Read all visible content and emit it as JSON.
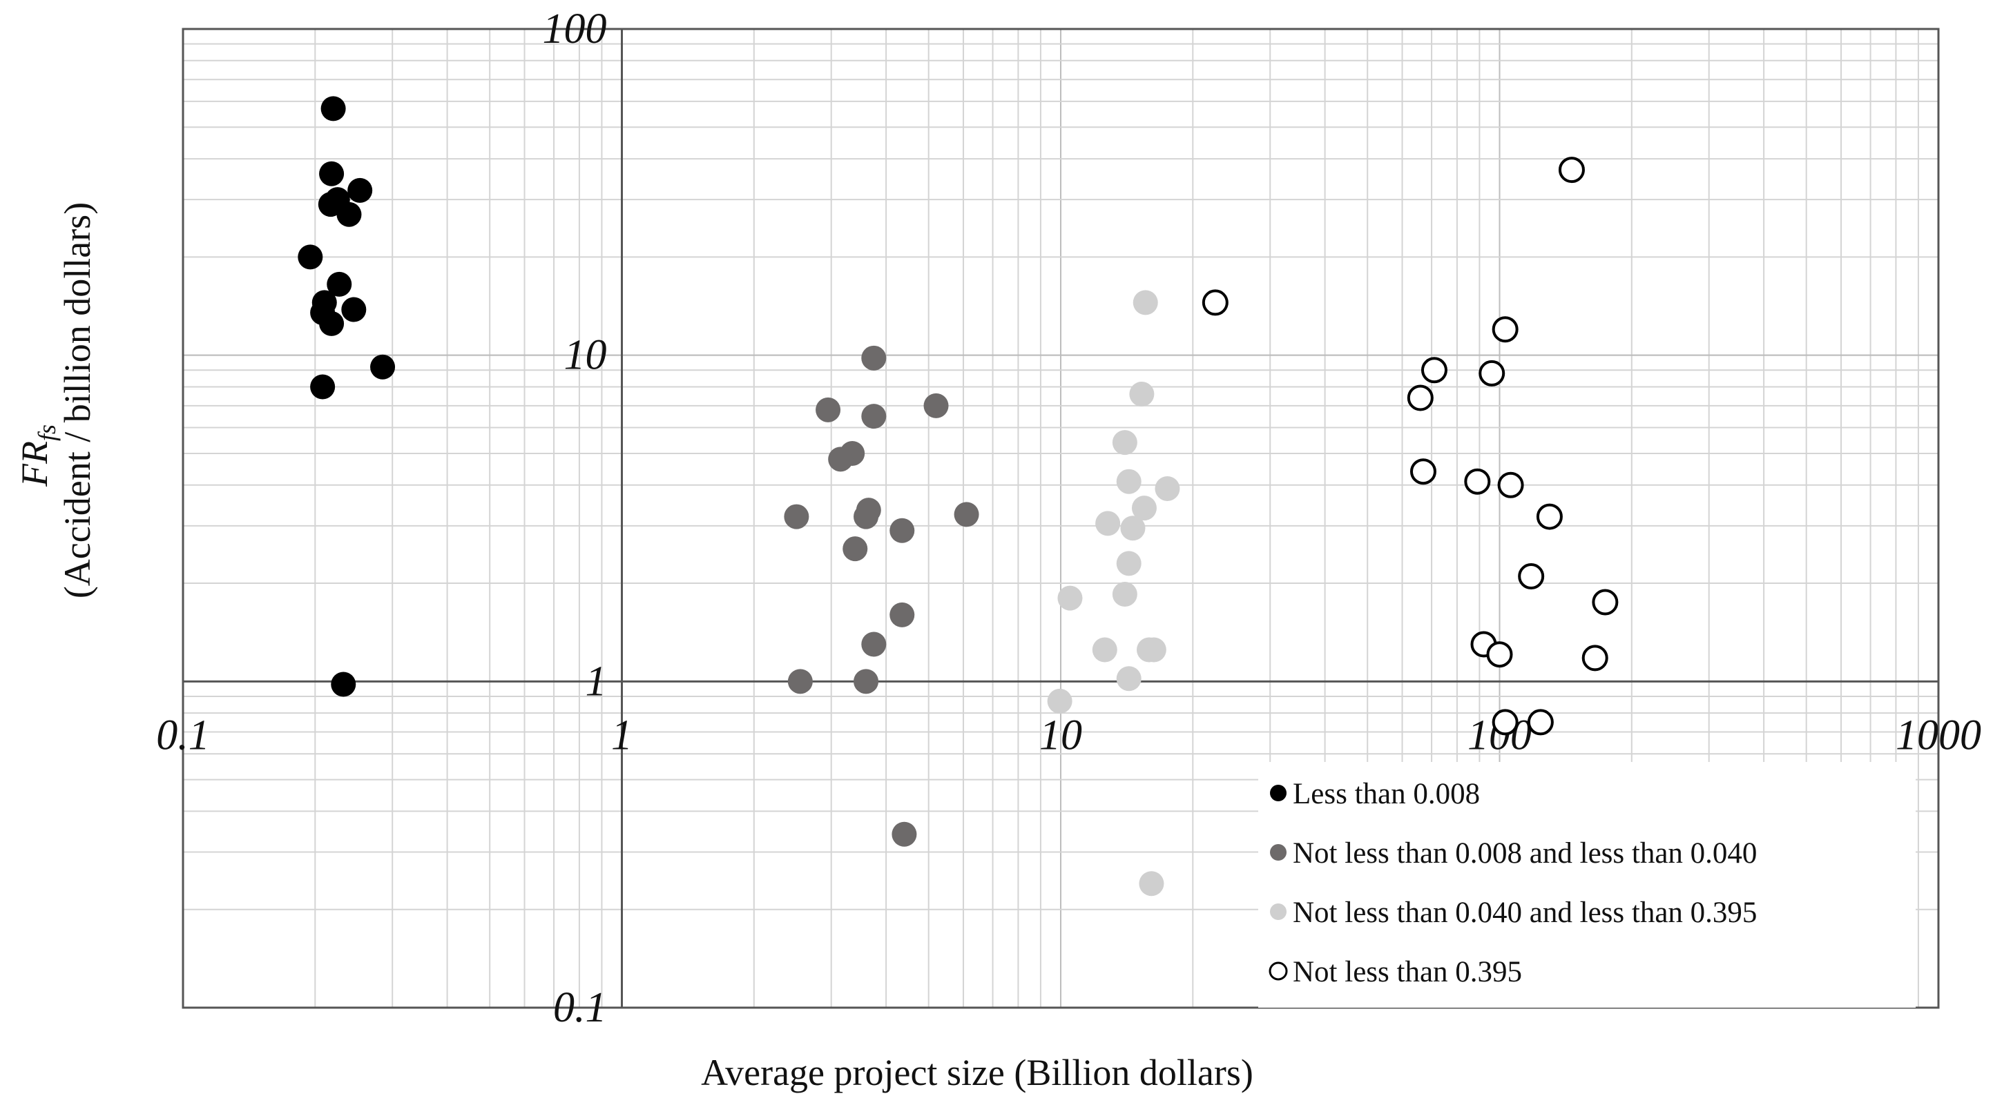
{
  "chart_data": {
    "type": "scatter",
    "x_scale": "log",
    "y_scale": "log",
    "xlim": [
      0.1,
      1000
    ],
    "ylim": [
      0.1,
      100
    ],
    "grid": true,
    "xlabel": "Average project size (Billion dollars)",
    "ylabel_main": "FR",
    "ylabel_sub": "fs",
    "ylabel_line2": "(Accident / billion dollars)",
    "x_tick_labels": [
      "0.1",
      "1",
      "10",
      "100",
      "1000"
    ],
    "x_tick_values": [
      0.1,
      1,
      10,
      100,
      1000
    ],
    "y_tick_labels": [
      "0.1",
      "1",
      "10",
      "100"
    ],
    "y_tick_values": [
      0.1,
      1,
      10,
      100
    ],
    "legend_position": "bottom-right",
    "series": [
      {
        "name": "Less than 0.008",
        "marker": "filled",
        "color": "#000000",
        "points": [
          {
            "x": 0.22,
            "y": 57
          },
          {
            "x": 0.218,
            "y": 36
          },
          {
            "x": 0.253,
            "y": 32
          },
          {
            "x": 0.217,
            "y": 29
          },
          {
            "x": 0.225,
            "y": 30
          },
          {
            "x": 0.239,
            "y": 27
          },
          {
            "x": 0.195,
            "y": 20
          },
          {
            "x": 0.227,
            "y": 16.5
          },
          {
            "x": 0.21,
            "y": 14.5
          },
          {
            "x": 0.208,
            "y": 13.5
          },
          {
            "x": 0.245,
            "y": 13.8
          },
          {
            "x": 0.218,
            "y": 12.5
          },
          {
            "x": 0.285,
            "y": 9.2
          },
          {
            "x": 0.208,
            "y": 8.0
          },
          {
            "x": 0.232,
            "y": 0.98
          }
        ]
      },
      {
        "name": "Not less than 0.008 and less than 0.040",
        "marker": "filled",
        "color": "#6d6a6a",
        "points": [
          {
            "x": 3.75,
            "y": 9.8
          },
          {
            "x": 2.95,
            "y": 6.8
          },
          {
            "x": 3.75,
            "y": 6.5
          },
          {
            "x": 5.2,
            "y": 7.0
          },
          {
            "x": 3.35,
            "y": 5.0
          },
          {
            "x": 3.15,
            "y": 4.8
          },
          {
            "x": 2.5,
            "y": 3.2
          },
          {
            "x": 3.6,
            "y": 3.2
          },
          {
            "x": 3.65,
            "y": 3.35
          },
          {
            "x": 6.1,
            "y": 3.25
          },
          {
            "x": 4.35,
            "y": 2.9
          },
          {
            "x": 3.4,
            "y": 2.55
          },
          {
            "x": 4.35,
            "y": 1.6
          },
          {
            "x": 3.75,
            "y": 1.3
          },
          {
            "x": 2.55,
            "y": 1.0
          },
          {
            "x": 3.6,
            "y": 1.0
          },
          {
            "x": 4.4,
            "y": 0.34
          }
        ]
      },
      {
        "name": "Not less than 0.040 and less than 0.395",
        "marker": "filled",
        "color": "#cfcfcf",
        "points": [
          {
            "x": 15.6,
            "y": 14.5
          },
          {
            "x": 15.3,
            "y": 7.6
          },
          {
            "x": 14.0,
            "y": 5.4
          },
          {
            "x": 14.3,
            "y": 4.1
          },
          {
            "x": 17.5,
            "y": 3.9
          },
          {
            "x": 15.5,
            "y": 3.4
          },
          {
            "x": 12.8,
            "y": 3.05
          },
          {
            "x": 14.6,
            "y": 2.95
          },
          {
            "x": 14.3,
            "y": 2.3
          },
          {
            "x": 10.5,
            "y": 1.8
          },
          {
            "x": 14.0,
            "y": 1.85
          },
          {
            "x": 12.6,
            "y": 1.25
          },
          {
            "x": 15.9,
            "y": 1.25
          },
          {
            "x": 16.3,
            "y": 1.25
          },
          {
            "x": 14.3,
            "y": 1.02
          },
          {
            "x": 9.95,
            "y": 0.87
          },
          {
            "x": 16.1,
            "y": 0.24
          }
        ]
      },
      {
        "name": "Not less than 0.395",
        "marker": "hollow",
        "color": "#000000",
        "points": [
          {
            "x": 146,
            "y": 37
          },
          {
            "x": 22.5,
            "y": 14.5
          },
          {
            "x": 103,
            "y": 12.0
          },
          {
            "x": 71,
            "y": 9.0
          },
          {
            "x": 96,
            "y": 8.8
          },
          {
            "x": 66,
            "y": 7.4
          },
          {
            "x": 67,
            "y": 4.4
          },
          {
            "x": 89,
            "y": 4.1
          },
          {
            "x": 106,
            "y": 4.0
          },
          {
            "x": 130,
            "y": 3.2
          },
          {
            "x": 118,
            "y": 2.1
          },
          {
            "x": 174,
            "y": 1.75
          },
          {
            "x": 92,
            "y": 1.3
          },
          {
            "x": 100,
            "y": 1.21
          },
          {
            "x": 165,
            "y": 1.18
          },
          {
            "x": 103,
            "y": 0.75
          },
          {
            "x": 124,
            "y": 0.75
          }
        ]
      }
    ]
  }
}
